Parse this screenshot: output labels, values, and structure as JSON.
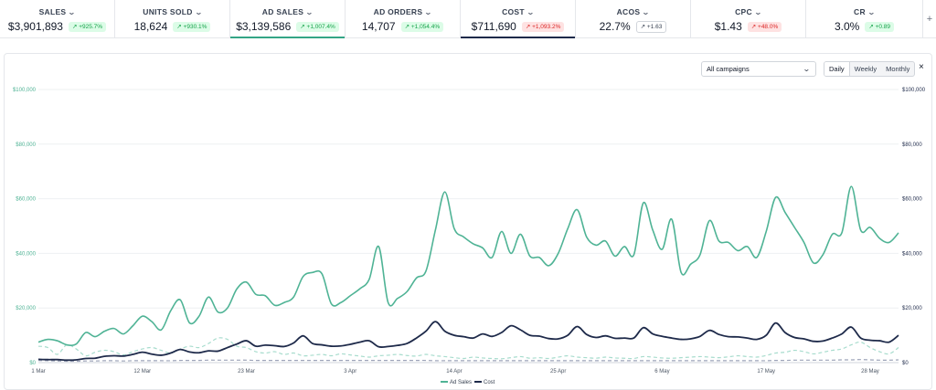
{
  "metrics": [
    {
      "label": "SALES",
      "value": "$3,901,893",
      "delta": "↗ +925.7%",
      "tone": "green"
    },
    {
      "label": "UNITS SOLD",
      "value": "18,624",
      "delta": "↗ +930.1%",
      "tone": "green"
    },
    {
      "label": "AD SALES",
      "value": "$3,139,586",
      "delta": "↗ +1,007.4%",
      "tone": "green"
    },
    {
      "label": "AD ORDERS",
      "value": "14,707",
      "delta": "↗ +1,054.4%",
      "tone": "green"
    },
    {
      "label": "COST",
      "value": "$711,690",
      "delta": "↗ +1,093.2%",
      "tone": "red"
    },
    {
      "label": "ACOS",
      "value": "22.7%",
      "delta": "↗ +1.63",
      "tone": "gray"
    },
    {
      "label": "CPC",
      "value": "$1.43",
      "delta": "↗ +48.0%",
      "tone": "red"
    },
    {
      "label": "CR",
      "value": "3.0%",
      "delta": "↗ +0.89",
      "tone": "green"
    }
  ],
  "plus_label": "+",
  "controls": {
    "campaign_select": "All campaigns",
    "ranges": [
      "Daily",
      "Weekly",
      "Monthly"
    ],
    "active_range": "Daily",
    "close_label": "×"
  },
  "colors": {
    "ad_sales": "#4fb395",
    "cost": "#1e2a4a",
    "ad_sales_prev": "#a7dccd",
    "cost_prev": "#9ca3b8"
  },
  "chart_data": {
    "type": "line",
    "x_ticks": [
      "1 Mar",
      "12 Mar",
      "23 Mar",
      "3 Apr",
      "14 Apr",
      "25 Apr",
      "6 May",
      "17 May",
      "28 May"
    ],
    "y_ticks_left": [
      "$0",
      "$20,000",
      "$40,000",
      "$60,000",
      "$80,000",
      "$100,000"
    ],
    "y_ticks_right": [
      "$0",
      "$20,000",
      "$40,000",
      "$60,000",
      "$80,000",
      "$100,000"
    ],
    "ylim": [
      0,
      100000
    ],
    "legend": [
      "Ad Sales",
      "Cost"
    ],
    "series": [
      {
        "name": "Ad Sales",
        "style": "solid",
        "values": [
          7500,
          8500,
          8000,
          6500,
          6800,
          11000,
          9500,
          11500,
          12500,
          10500,
          13500,
          17000,
          15000,
          12000,
          19000,
          23000,
          14500,
          17000,
          24000,
          18500,
          20000,
          27000,
          29500,
          25000,
          24500,
          21000,
          22000,
          24000,
          31500,
          33000,
          32500,
          21500,
          22000,
          24500,
          27000,
          30500,
          42500,
          22000,
          23500,
          26000,
          31000,
          33500,
          48500,
          62500,
          49000,
          46000,
          43500,
          42000,
          38500,
          48000,
          40000,
          47000,
          39000,
          38500,
          35500,
          40000,
          49000,
          56000,
          46000,
          43000,
          44500,
          39000,
          42500,
          39500,
          58500,
          48500,
          41500,
          52500,
          33000,
          36000,
          39500,
          52000,
          44500,
          44000,
          41000,
          42500,
          38500,
          48000,
          60500,
          55000,
          49500,
          44000,
          36500,
          39500,
          47000,
          47500,
          64500,
          48500,
          49500,
          45500,
          44000,
          47500
        ]
      },
      {
        "name": "Cost",
        "style": "solid",
        "values": [
          1200,
          1100,
          1100,
          900,
          1000,
          1500,
          1600,
          2300,
          2500,
          2400,
          3000,
          3800,
          3100,
          2700,
          3500,
          4800,
          3900,
          3600,
          4300,
          4200,
          5500,
          6800,
          8000,
          6000,
          6400,
          6200,
          5900,
          7200,
          9800,
          7000,
          6500,
          6000,
          6100,
          6700,
          7500,
          8000,
          5800,
          5900,
          6300,
          7000,
          9000,
          11500,
          15000,
          11500,
          10000,
          9500,
          9000,
          10500,
          9600,
          11000,
          13500,
          12000,
          10000,
          9700,
          8800,
          8700,
          10000,
          13200,
          10300,
          9200,
          9800,
          8900,
          9000,
          9000,
          12800,
          10500,
          9600,
          9000,
          8500,
          8700,
          9600,
          11800,
          10300,
          9500,
          9400,
          9000,
          8500,
          10000,
          14500,
          11000,
          9200,
          8700,
          7800,
          7900,
          9000,
          10500,
          13000,
          9000,
          8200,
          8000,
          7500,
          10000
        ]
      },
      {
        "name": "Ad Sales (previous)",
        "style": "dashed",
        "values": [
          6000,
          5500,
          3000,
          6500,
          5000,
          2500,
          3800,
          4500,
          4000,
          2800,
          4000,
          5000,
          5500,
          4500,
          3500,
          5000,
          6000,
          5500,
          7000,
          9000,
          8500,
          6000,
          5500,
          4000,
          3500,
          4000,
          3000,
          3500,
          2500,
          2700,
          3000,
          2500,
          3200,
          2800,
          2400,
          2000,
          2500,
          2700,
          3000,
          2600,
          2400,
          3000,
          2500,
          2200,
          1800,
          1500,
          2000,
          1700,
          1500,
          1400,
          1800,
          2200,
          1600,
          1800,
          1500,
          2000,
          2500,
          2000,
          1800,
          1600,
          2000,
          1700,
          1600,
          1500,
          2200,
          2000,
          1700,
          1600,
          1800,
          2000,
          2200,
          2000,
          1800,
          2100,
          2500,
          2200,
          2000,
          2600,
          3500,
          3800,
          4500,
          4000,
          3200,
          3800,
          4500,
          5000,
          6500,
          7500,
          5500,
          4000,
          3200,
          5500
        ]
      },
      {
        "name": "Cost (previous)",
        "style": "dashed",
        "values": [
          800,
          700,
          600,
          500,
          500,
          600,
          600,
          700,
          700,
          600,
          700,
          700,
          700,
          700,
          700,
          800,
          800,
          800,
          900,
          900,
          900,
          900,
          900,
          800,
          800,
          800,
          800,
          800,
          800,
          800,
          800,
          800,
          800,
          800,
          800,
          800,
          800,
          800,
          800,
          800,
          800,
          800,
          700,
          700,
          700,
          700,
          700,
          700,
          700,
          700,
          700,
          700,
          700,
          700,
          700,
          700,
          700,
          700,
          700,
          700,
          700,
          700,
          700,
          700,
          700,
          700,
          700,
          700,
          700,
          700,
          700,
          700,
          700,
          700,
          700,
          700,
          700,
          700,
          800,
          800,
          900,
          900,
          900,
          900,
          900,
          1000,
          1000,
          1100,
          1000,
          900,
          900,
          1000
        ]
      }
    ]
  }
}
